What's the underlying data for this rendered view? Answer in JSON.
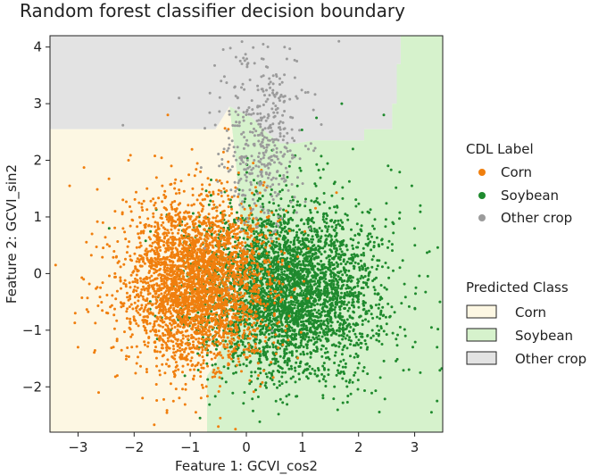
{
  "chart_data": {
    "type": "scatter",
    "title": "Random forest classifier decision boundary",
    "xlabel": "Feature 1:  GCVI_cos2",
    "ylabel": "Feature 2:  GCVI_sin2",
    "xlim": [
      -3.5,
      3.5
    ],
    "ylim": [
      -2.8,
      4.2
    ],
    "x_ticks": [
      -3,
      -2,
      -1,
      0,
      1,
      2,
      3
    ],
    "y_ticks": [
      -2,
      -1,
      0,
      1,
      2,
      3,
      4
    ],
    "colors": {
      "corn": "#f07f0e",
      "soybean": "#1f8a2e",
      "other": "#9b9b9b",
      "region_corn": "#fdf7e3",
      "region_soybean": "#d6f2cc",
      "region_other": "#e3e3e3"
    },
    "decision_regions": [
      {
        "class": "Other crop",
        "polygon": [
          [
            -3.5,
            4.2
          ],
          [
            2.75,
            4.2
          ],
          [
            2.75,
            3.7
          ],
          [
            2.68,
            3.7
          ],
          [
            2.68,
            3.0
          ],
          [
            2.6,
            3.0
          ],
          [
            2.6,
            2.55
          ],
          [
            2.1,
            2.55
          ],
          [
            2.1,
            2.35
          ],
          [
            1.2,
            2.35
          ],
          [
            0.9,
            2.3
          ],
          [
            0.6,
            2.3
          ],
          [
            0.35,
            2.5
          ],
          [
            0.1,
            2.75
          ],
          [
            -0.3,
            2.95
          ],
          [
            -0.55,
            2.55
          ],
          [
            -3.5,
            2.55
          ]
        ]
      },
      {
        "class": "Soybean",
        "polygon": [
          [
            2.75,
            4.2
          ],
          [
            3.5,
            4.2
          ],
          [
            3.5,
            -2.8
          ],
          [
            -0.7,
            -2.8
          ],
          [
            -0.7,
            -1.8
          ],
          [
            -0.55,
            -1.6
          ],
          [
            -0.45,
            -1.3
          ],
          [
            -0.3,
            -0.9
          ],
          [
            -0.15,
            -0.6
          ],
          [
            -0.05,
            -0.2
          ],
          [
            0.0,
            0.3
          ],
          [
            -0.1,
            0.9
          ],
          [
            -0.15,
            1.5
          ],
          [
            -0.2,
            2.1
          ],
          [
            -0.3,
            2.95
          ],
          [
            0.1,
            2.75
          ],
          [
            0.35,
            2.5
          ],
          [
            0.6,
            2.3
          ],
          [
            0.9,
            2.3
          ],
          [
            1.2,
            2.35
          ],
          [
            2.1,
            2.35
          ],
          [
            2.1,
            2.55
          ],
          [
            2.6,
            2.55
          ],
          [
            2.6,
            3.0
          ],
          [
            2.68,
            3.0
          ],
          [
            2.68,
            3.7
          ],
          [
            2.75,
            3.7
          ]
        ]
      },
      {
        "class": "Corn",
        "polygon": [
          [
            -3.5,
            2.55
          ],
          [
            -0.55,
            2.55
          ],
          [
            -0.3,
            2.95
          ],
          [
            -0.2,
            2.1
          ],
          [
            -0.15,
            1.5
          ],
          [
            -0.1,
            0.9
          ],
          [
            0.0,
            0.3
          ],
          [
            -0.05,
            -0.2
          ],
          [
            -0.15,
            -0.6
          ],
          [
            -0.3,
            -0.9
          ],
          [
            -0.45,
            -1.3
          ],
          [
            -0.55,
            -1.6
          ],
          [
            -0.7,
            -1.8
          ],
          [
            -0.7,
            -2.8
          ],
          [
            -3.5,
            -2.8
          ]
        ]
      }
    ],
    "series": [
      {
        "name": "Corn",
        "color": "#f07f0e",
        "n": 3200,
        "mean": [
          -0.9,
          -0.15
        ],
        "sd": [
          0.65,
          0.75
        ],
        "outliers": [
          [
            -3.4,
            0.15
          ],
          [
            -3.15,
            1.55
          ],
          [
            -3.0,
            -1.3
          ],
          [
            -3.05,
            -0.7
          ],
          [
            -2.3,
            -1.8
          ],
          [
            -2.75,
            0.7
          ],
          [
            -2.6,
            -0.25
          ],
          [
            -0.5,
            -2.7
          ],
          [
            -1.4,
            2.8
          ],
          [
            -2.1,
            2.0
          ],
          [
            -1.85,
            -2.2
          ],
          [
            -0.9,
            -2.45
          ],
          [
            -2.9,
            -0.1
          ],
          [
            -2.2,
            1.3
          ]
        ]
      },
      {
        "name": "Soybean",
        "color": "#1f8a2e",
        "n": 3700,
        "mean": [
          0.75,
          -0.3
        ],
        "sd": [
          0.8,
          0.75
        ],
        "outliers": [
          [
            3.3,
            -2.45
          ],
          [
            3.4,
            -2.25
          ],
          [
            3.1,
            -1.75
          ],
          [
            3.4,
            -1.3
          ],
          [
            3.3,
            -0.95
          ],
          [
            3.45,
            -0.5
          ],
          [
            2.95,
            1.55
          ],
          [
            3.1,
            1.2
          ],
          [
            1.7,
            3.0
          ],
          [
            1.25,
            2.75
          ],
          [
            1.9,
            2.2
          ],
          [
            2.45,
            2.8
          ]
        ]
      },
      {
        "name": "Other crop",
        "color": "#9b9b9b",
        "n": 420,
        "mean": [
          0.25,
          2.35
        ],
        "sd": [
          0.35,
          0.75
        ],
        "outliers": [
          [
            1.65,
            4.1
          ],
          [
            0.3,
            4.05
          ],
          [
            -2.2,
            2.62
          ],
          [
            -1.2,
            3.1
          ],
          [
            1.1,
            3.2
          ],
          [
            -0.45,
            3.4
          ],
          [
            0.9,
            3.75
          ]
        ]
      }
    ],
    "legend_cdl": {
      "title": "CDL Label",
      "position": "right",
      "items": [
        {
          "label": "Corn",
          "color": "#f07f0e"
        },
        {
          "label": "Soybean",
          "color": "#1f8a2e"
        },
        {
          "label": "Other crop",
          "color": "#9b9b9b"
        }
      ]
    },
    "legend_predicted": {
      "title": "Predicted Class",
      "position": "right",
      "items": [
        {
          "label": "Corn",
          "color": "#fdf7e3"
        },
        {
          "label": "Soybean",
          "color": "#d6f2cc"
        },
        {
          "label": "Other crop",
          "color": "#e3e3e3"
        }
      ]
    }
  }
}
